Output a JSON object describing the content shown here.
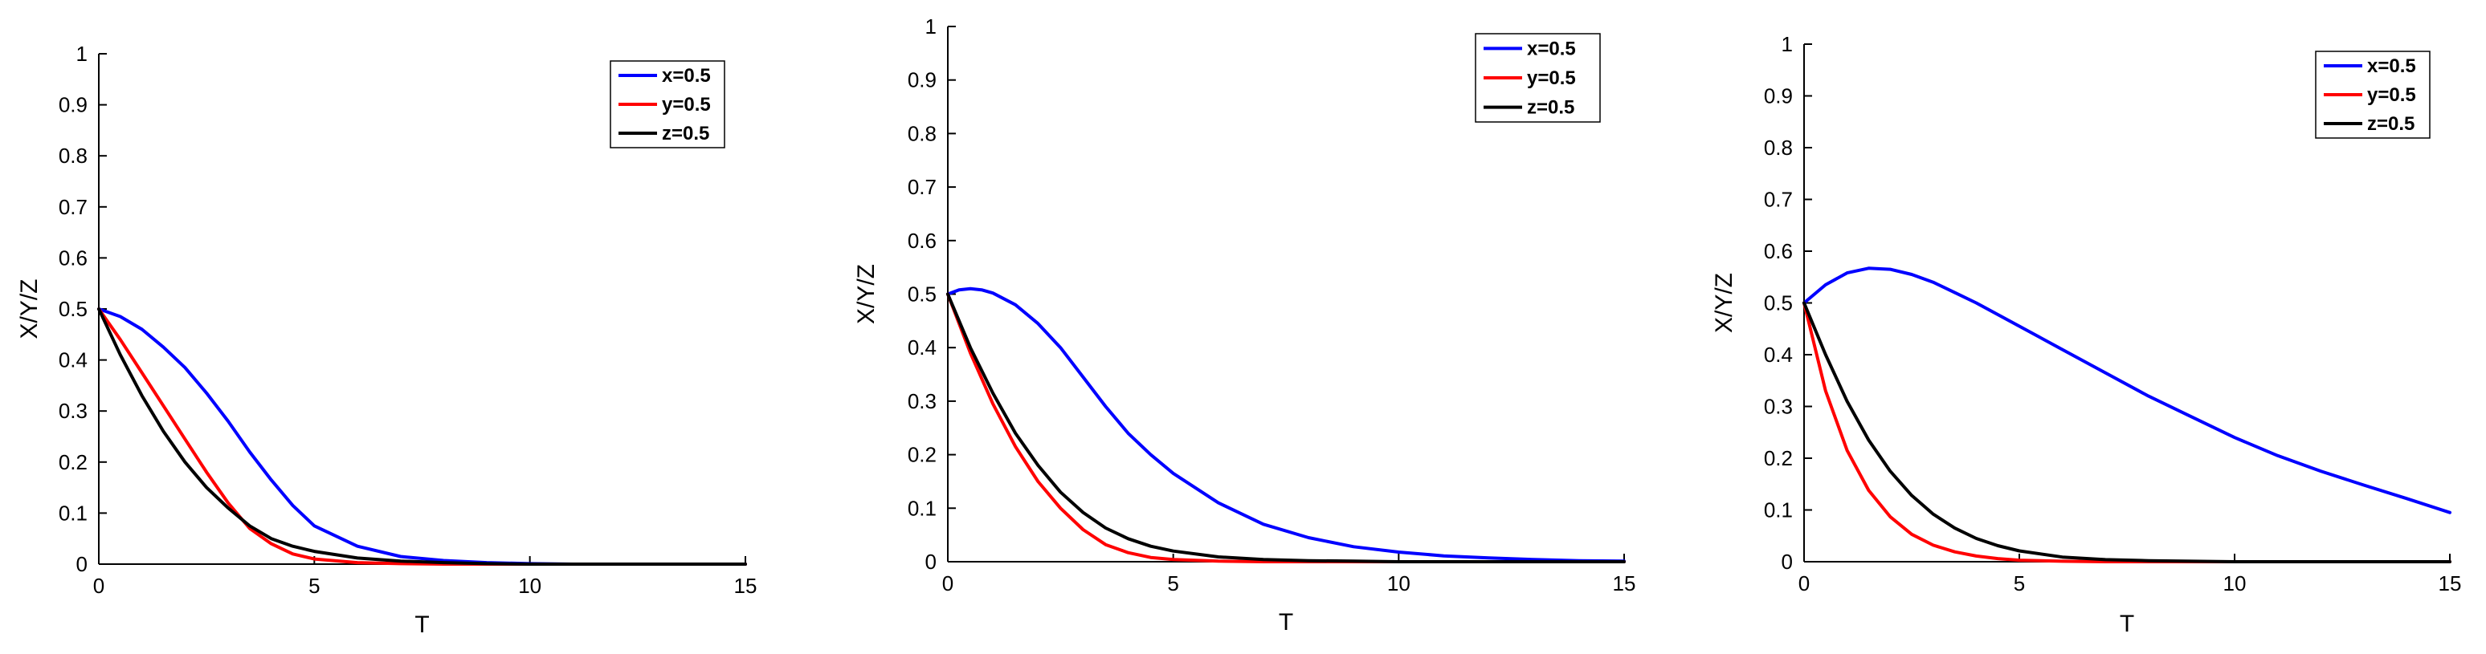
{
  "colors": {
    "x": "#0000ff",
    "y": "#ff0000",
    "z": "#000000",
    "axis": "#000000"
  },
  "chart_data": [
    {
      "type": "line",
      "xlabel": "T",
      "ylabel": "X/Y/Z",
      "xlim": [
        0,
        15
      ],
      "ylim": [
        0,
        1
      ],
      "xticks": [
        "0",
        "5",
        "10",
        "15"
      ],
      "yticks": [
        "0",
        "0.1",
        "0.2",
        "0.3",
        "0.4",
        "0.5",
        "0.6",
        "0.7",
        "0.8",
        "0.9",
        "1"
      ],
      "grid": false,
      "legend": "top-right",
      "series": [
        {
          "name": "x=0.5",
          "color": "#0000ff",
          "x": [
            0,
            0.5,
            1,
            1.5,
            2,
            2.5,
            3,
            3.5,
            4,
            4.5,
            5,
            6,
            7,
            8,
            9,
            10,
            11,
            12,
            13,
            14,
            15
          ],
          "y": [
            0.5,
            0.485,
            0.46,
            0.425,
            0.385,
            0.335,
            0.28,
            0.22,
            0.165,
            0.115,
            0.075,
            0.035,
            0.015,
            0.007,
            0.003,
            0.001,
            0.0,
            0.0,
            0.0,
            0.0,
            0.0
          ]
        },
        {
          "name": "y=0.5",
          "color": "#ff0000",
          "x": [
            0,
            0.5,
            1,
            1.5,
            2,
            2.5,
            3,
            3.5,
            4,
            4.5,
            5,
            6,
            7,
            8,
            9,
            10,
            11,
            12,
            13,
            14,
            15
          ],
          "y": [
            0.5,
            0.44,
            0.375,
            0.31,
            0.245,
            0.18,
            0.12,
            0.07,
            0.04,
            0.02,
            0.01,
            0.003,
            0.001,
            0.0,
            0.0,
            0.0,
            0.0,
            0.0,
            0.0,
            0.0,
            0.0
          ]
        },
        {
          "name": "z=0.5",
          "color": "#000000",
          "x": [
            0,
            0.5,
            1,
            1.5,
            2,
            2.5,
            3,
            3.5,
            4,
            4.5,
            5,
            6,
            7,
            8,
            9,
            10,
            11,
            12,
            13,
            14,
            15
          ],
          "y": [
            0.5,
            0.41,
            0.33,
            0.26,
            0.2,
            0.15,
            0.11,
            0.075,
            0.05,
            0.035,
            0.025,
            0.012,
            0.006,
            0.003,
            0.001,
            0.0,
            0.0,
            0.0,
            0.0,
            0.0,
            0.0
          ]
        }
      ]
    },
    {
      "type": "line",
      "xlabel": "T",
      "ylabel": "X/Y/Z",
      "xlim": [
        0,
        15
      ],
      "ylim": [
        0,
        1
      ],
      "xticks": [
        "0",
        "5",
        "10",
        "15"
      ],
      "yticks": [
        "0",
        "0.1",
        "0.2",
        "0.3",
        "0.4",
        "0.5",
        "0.6",
        "0.7",
        "0.8",
        "0.9",
        "1"
      ],
      "grid": false,
      "legend": "top-right",
      "series": [
        {
          "name": "x=0.5",
          "color": "#0000ff",
          "x": [
            0,
            0.25,
            0.5,
            0.75,
            1,
            1.5,
            2,
            2.5,
            3,
            3.5,
            4,
            4.5,
            5,
            6,
            7,
            8,
            9,
            10,
            11,
            12,
            13,
            14,
            15
          ],
          "y": [
            0.5,
            0.508,
            0.51,
            0.508,
            0.502,
            0.48,
            0.445,
            0.4,
            0.345,
            0.29,
            0.24,
            0.2,
            0.165,
            0.11,
            0.07,
            0.045,
            0.028,
            0.018,
            0.011,
            0.007,
            0.004,
            0.002,
            0.001
          ]
        },
        {
          "name": "y=0.5",
          "color": "#ff0000",
          "x": [
            0,
            0.5,
            1,
            1.5,
            2,
            2.5,
            3,
            3.5,
            4,
            4.5,
            5,
            6,
            7,
            8,
            9,
            10,
            11,
            12,
            13,
            14,
            15
          ],
          "y": [
            0.5,
            0.39,
            0.295,
            0.215,
            0.15,
            0.1,
            0.06,
            0.032,
            0.017,
            0.008,
            0.004,
            0.001,
            0.0,
            0.0,
            0.0,
            0.0,
            0.0,
            0.0,
            0.0,
            0.0,
            0.0
          ]
        },
        {
          "name": "z=0.5",
          "color": "#000000",
          "x": [
            0,
            0.5,
            1,
            1.5,
            2,
            2.5,
            3,
            3.5,
            4,
            4.5,
            5,
            6,
            7,
            8,
            9,
            10,
            11,
            12,
            13,
            14,
            15
          ],
          "y": [
            0.5,
            0.4,
            0.315,
            0.24,
            0.18,
            0.13,
            0.092,
            0.063,
            0.043,
            0.029,
            0.02,
            0.009,
            0.004,
            0.002,
            0.001,
            0.0,
            0.0,
            0.0,
            0.0,
            0.0,
            0.0
          ]
        }
      ]
    },
    {
      "type": "line",
      "xlabel": "T",
      "ylabel": "X/Y/Z",
      "xlim": [
        0,
        15
      ],
      "ylim": [
        0,
        1
      ],
      "xticks": [
        "0",
        "5",
        "10",
        "15"
      ],
      "yticks": [
        "0",
        "0.1",
        "0.2",
        "0.3",
        "0.4",
        "0.5",
        "0.6",
        "0.7",
        "0.8",
        "0.9",
        "1"
      ],
      "grid": false,
      "legend": "top-right",
      "series": [
        {
          "name": "x=0.5",
          "color": "#0000ff",
          "x": [
            0,
            0.5,
            1,
            1.5,
            2,
            2.5,
            3,
            3.5,
            4,
            5,
            6,
            7,
            8,
            9,
            10,
            11,
            12,
            13,
            14,
            15
          ],
          "y": [
            0.5,
            0.535,
            0.558,
            0.567,
            0.565,
            0.555,
            0.54,
            0.52,
            0.5,
            0.455,
            0.41,
            0.365,
            0.32,
            0.28,
            0.24,
            0.205,
            0.175,
            0.148,
            0.122,
            0.095
          ]
        },
        {
          "name": "y=0.5",
          "color": "#ff0000",
          "x": [
            0,
            0.5,
            1,
            1.5,
            2,
            2.5,
            3,
            3.5,
            4,
            4.5,
            5,
            6,
            7,
            8,
            9,
            10,
            11,
            12,
            13,
            14,
            15
          ],
          "y": [
            0.5,
            0.33,
            0.215,
            0.138,
            0.087,
            0.053,
            0.032,
            0.019,
            0.011,
            0.006,
            0.003,
            0.001,
            0.0,
            0.0,
            0.0,
            0.0,
            0.0,
            0.0,
            0.0,
            0.0,
            0.0
          ]
        },
        {
          "name": "z=0.5",
          "color": "#000000",
          "x": [
            0,
            0.5,
            1,
            1.5,
            2,
            2.5,
            3,
            3.5,
            4,
            4.5,
            5,
            6,
            7,
            8,
            9,
            10,
            11,
            12,
            13,
            14,
            15
          ],
          "y": [
            0.5,
            0.4,
            0.31,
            0.235,
            0.175,
            0.128,
            0.092,
            0.065,
            0.045,
            0.031,
            0.021,
            0.009,
            0.004,
            0.002,
            0.001,
            0.0,
            0.0,
            0.0,
            0.0,
            0.0,
            0.0
          ]
        }
      ]
    }
  ]
}
